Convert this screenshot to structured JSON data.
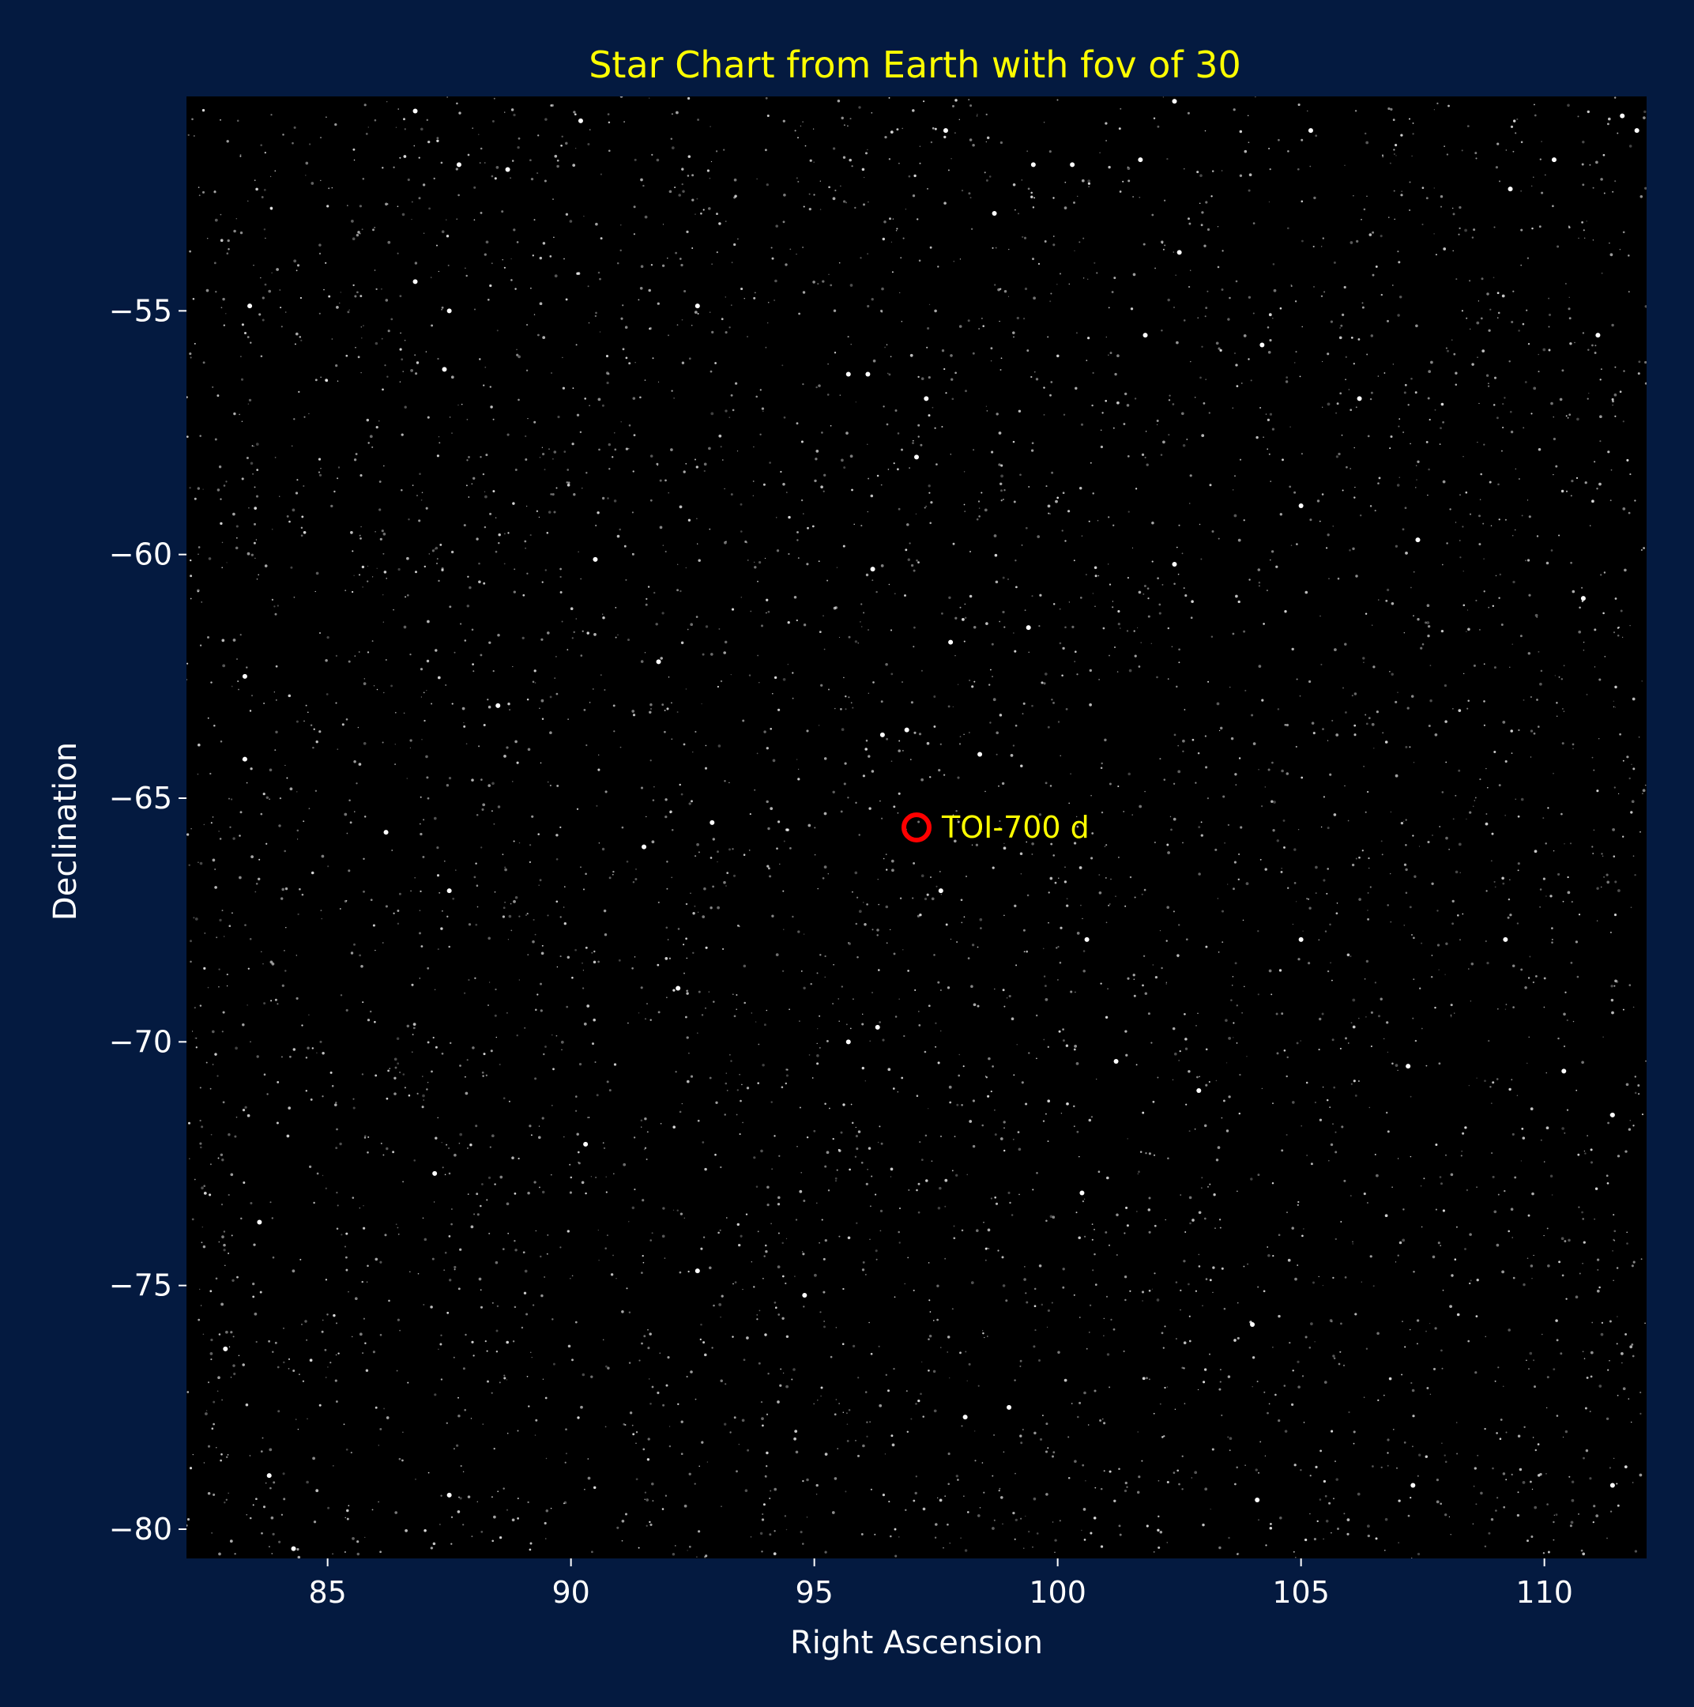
{
  "chart_data": {
    "type": "scatter",
    "title": "Star Chart from Earth with fov of 30",
    "xlabel": "Right Ascension",
    "ylabel": "Declination",
    "xlim": [
      82.1,
      112.1
    ],
    "ylim": [
      -80.6,
      -50.6
    ],
    "xticks": [
      85,
      90,
      95,
      100,
      105,
      110
    ],
    "yticks": [
      -55,
      -60,
      -65,
      -70,
      -75,
      -80
    ],
    "xtick_labels": [
      "85",
      "90",
      "95",
      "100",
      "105",
      "110"
    ],
    "ytick_labels": [
      "−55",
      "−60",
      "−65",
      "−70",
      "−75",
      "−80"
    ],
    "grid": false,
    "colors": {
      "figure_bg": "#041a40",
      "axes_bg": "#000000",
      "star": "#ffffff",
      "title": "#ffff00",
      "target_marker": "#ff0000",
      "annotation": "#ffff00",
      "text": "#ffffff"
    },
    "bright_stars": [
      {
        "ra": 86.8,
        "dec": -50.9
      },
      {
        "ra": 87.7,
        "dec": -52.0
      },
      {
        "ra": 88.7,
        "dec": -52.1
      },
      {
        "ra": 90.2,
        "dec": -51.1
      },
      {
        "ra": 83.4,
        "dec": -54.9
      },
      {
        "ra": 86.8,
        "dec": -54.4
      },
      {
        "ra": 87.5,
        "dec": -55.0
      },
      {
        "ra": 87.4,
        "dec": -56.2
      },
      {
        "ra": 92.6,
        "dec": -54.9
      },
      {
        "ra": 95.7,
        "dec": -56.3
      },
      {
        "ra": 96.1,
        "dec": -56.3
      },
      {
        "ra": 97.3,
        "dec": -56.8
      },
      {
        "ra": 97.7,
        "dec": -51.3
      },
      {
        "ra": 98.7,
        "dec": -53.0
      },
      {
        "ra": 99.5,
        "dec": -52.0
      },
      {
        "ra": 100.3,
        "dec": -52.0
      },
      {
        "ra": 101.7,
        "dec": -51.9
      },
      {
        "ra": 102.4,
        "dec": -50.7
      },
      {
        "ra": 102.5,
        "dec": -53.8
      },
      {
        "ra": 101.8,
        "dec": -55.5
      },
      {
        "ra": 105.2,
        "dec": -51.3
      },
      {
        "ra": 109.3,
        "dec": -52.5
      },
      {
        "ra": 110.2,
        "dec": -51.9
      },
      {
        "ra": 111.9,
        "dec": -51.3
      },
      {
        "ra": 111.6,
        "dec": -51.0
      },
      {
        "ra": 111.1,
        "dec": -55.5
      },
      {
        "ra": 106.2,
        "dec": -56.8
      },
      {
        "ra": 104.2,
        "dec": -55.7
      },
      {
        "ra": 83.3,
        "dec": -62.5
      },
      {
        "ra": 83.3,
        "dec": -64.2
      },
      {
        "ra": 88.5,
        "dec": -63.1
      },
      {
        "ra": 90.5,
        "dec": -60.1
      },
      {
        "ra": 91.8,
        "dec": -62.2
      },
      {
        "ra": 96.2,
        "dec": -60.3
      },
      {
        "ra": 97.1,
        "dec": -58.0
      },
      {
        "ra": 99.4,
        "dec": -61.5
      },
      {
        "ra": 97.8,
        "dec": -61.8
      },
      {
        "ra": 102.4,
        "dec": -60.2
      },
      {
        "ra": 105.0,
        "dec": -59.0
      },
      {
        "ra": 107.4,
        "dec": -59.7
      },
      {
        "ra": 110.8,
        "dec": -60.9
      },
      {
        "ra": 96.4,
        "dec": -63.7
      },
      {
        "ra": 96.9,
        "dec": -63.6
      },
      {
        "ra": 98.4,
        "dec": -64.1
      },
      {
        "ra": 86.2,
        "dec": -65.7
      },
      {
        "ra": 87.5,
        "dec": -66.9
      },
      {
        "ra": 91.5,
        "dec": -66.0
      },
      {
        "ra": 92.9,
        "dec": -65.5
      },
      {
        "ra": 97.6,
        "dec": -66.9
      },
      {
        "ra": 100.6,
        "dec": -67.9
      },
      {
        "ra": 105.0,
        "dec": -67.9
      },
      {
        "ra": 109.2,
        "dec": -67.9
      },
      {
        "ra": 92.2,
        "dec": -68.9
      },
      {
        "ra": 95.7,
        "dec": -70.0
      },
      {
        "ra": 96.3,
        "dec": -69.7
      },
      {
        "ra": 101.2,
        "dec": -70.4
      },
      {
        "ra": 102.9,
        "dec": -71.0
      },
      {
        "ra": 107.2,
        "dec": -70.5
      },
      {
        "ra": 110.4,
        "dec": -70.6
      },
      {
        "ra": 111.4,
        "dec": -71.5
      },
      {
        "ra": 83.6,
        "dec": -73.7
      },
      {
        "ra": 87.2,
        "dec": -72.7
      },
      {
        "ra": 90.3,
        "dec": -72.1
      },
      {
        "ra": 100.5,
        "dec": -73.1
      },
      {
        "ra": 92.6,
        "dec": -74.7
      },
      {
        "ra": 94.8,
        "dec": -75.2
      },
      {
        "ra": 104.0,
        "dec": -75.8
      },
      {
        "ra": 82.9,
        "dec": -76.3
      },
      {
        "ra": 98.1,
        "dec": -77.7
      },
      {
        "ra": 99.0,
        "dec": -77.5
      },
      {
        "ra": 87.5,
        "dec": -79.3
      },
      {
        "ra": 83.8,
        "dec": -78.9
      },
      {
        "ra": 84.3,
        "dec": -80.4
      },
      {
        "ra": 104.1,
        "dec": -79.4
      },
      {
        "ra": 111.4,
        "dec": -79.1
      },
      {
        "ra": 107.3,
        "dec": -79.1
      }
    ],
    "faint_star_count": 5200,
    "target": {
      "name": "TOI-700 d",
      "ra": 97.1,
      "dec": -65.6,
      "marker": "open-circle",
      "label": "TOI-700 d"
    }
  }
}
